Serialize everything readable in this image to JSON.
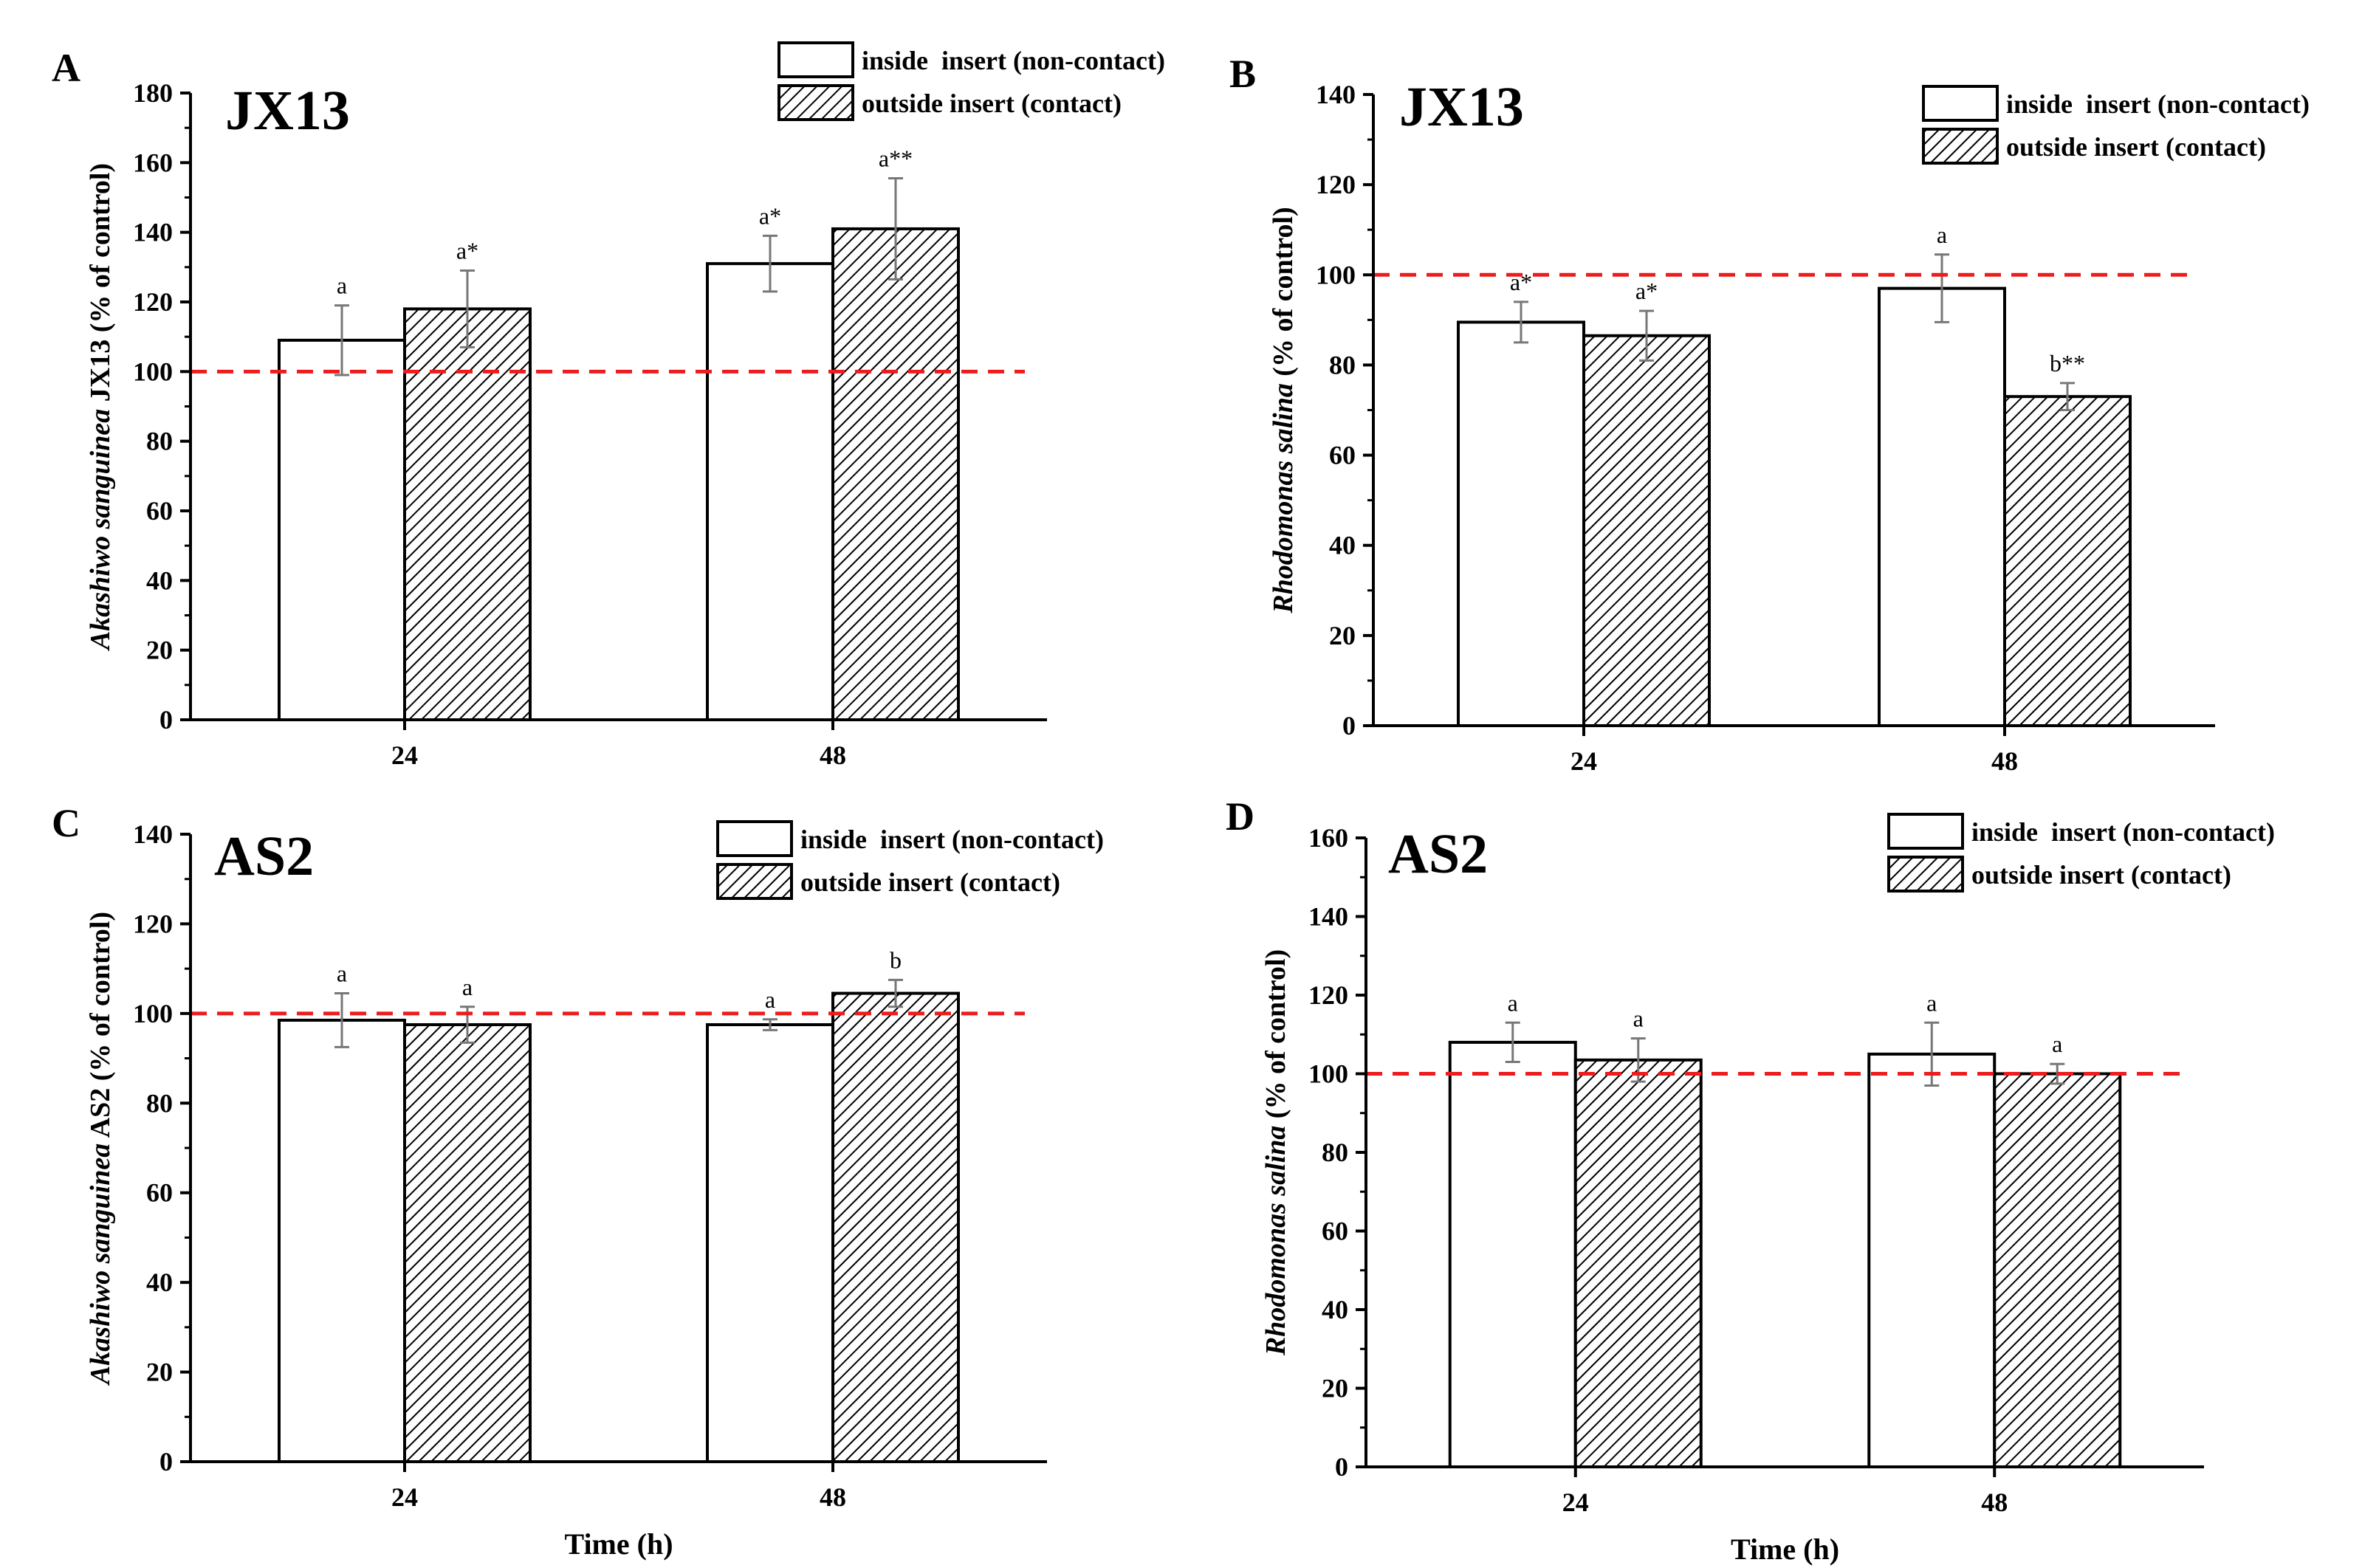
{
  "figure": {
    "hatch_color": "#000000",
    "reference_line_color": "#ee1c1c",
    "errorbar_color": "#777777"
  },
  "chart_data": [
    {
      "panel": "A",
      "type": "bar",
      "title": "JX13",
      "ylabel_italic": "Akashiwo sanguinea",
      "ylabel_rest": " JX13 (% of control)",
      "xlabel": "",
      "categories": [
        "24",
        "48"
      ],
      "ylim": [
        0,
        180
      ],
      "yticks": [
        0,
        20,
        40,
        60,
        80,
        100,
        120,
        140,
        160,
        180
      ],
      "reference_line": 100,
      "legend_position": "top-right",
      "series": [
        {
          "name": "inside  insert (non-contact)",
          "pattern": "none",
          "values": [
            109,
            131
          ],
          "errors": [
            10,
            8
          ],
          "labels": [
            "a",
            "a*"
          ]
        },
        {
          "name": "outside insert (contact)",
          "pattern": "hatch",
          "values": [
            118,
            141
          ],
          "errors": [
            11,
            14.5
          ],
          "labels": [
            "a*",
            "a**"
          ]
        }
      ]
    },
    {
      "panel": "B",
      "type": "bar",
      "title": "JX13",
      "ylabel_italic": "Rhodomonas salina",
      "ylabel_rest": " (% of control)",
      "xlabel": "",
      "categories": [
        "24",
        "48"
      ],
      "ylim": [
        0,
        140
      ],
      "yticks": [
        0,
        20,
        40,
        60,
        80,
        100,
        120,
        140
      ],
      "reference_line": 100,
      "legend_position": "top-right",
      "series": [
        {
          "name": "inside  insert (non-contact)",
          "pattern": "none",
          "values": [
            89.5,
            97
          ],
          "errors": [
            4.5,
            7.5
          ],
          "labels": [
            "a*",
            "a"
          ]
        },
        {
          "name": "outside insert (contact)",
          "pattern": "hatch",
          "values": [
            86.5,
            73
          ],
          "errors": [
            5.5,
            3
          ],
          "labels": [
            "a*",
            "b**"
          ]
        }
      ]
    },
    {
      "panel": "C",
      "type": "bar",
      "title": "AS2",
      "ylabel_italic": "Akashiwo sanguinea",
      "ylabel_rest": " AS2 (% of control)",
      "xlabel": "Time (h)",
      "categories": [
        "24",
        "48"
      ],
      "ylim": [
        0,
        140
      ],
      "yticks": [
        0,
        20,
        40,
        60,
        80,
        100,
        120,
        140
      ],
      "reference_line": 100,
      "legend_position": "top-right",
      "series": [
        {
          "name": "inside  insert (non-contact)",
          "pattern": "none",
          "values": [
            98.5,
            97.5
          ],
          "errors": [
            6,
            1.2
          ],
          "labels": [
            "a",
            "a"
          ]
        },
        {
          "name": "outside insert (contact)",
          "pattern": "hatch",
          "values": [
            97.5,
            104.5
          ],
          "errors": [
            4,
            3
          ],
          "labels": [
            "a",
            "b"
          ]
        }
      ]
    },
    {
      "panel": "D",
      "type": "bar",
      "title": "AS2",
      "ylabel_italic": "Rhodomonas salina",
      "ylabel_rest": " (% of control)",
      "xlabel": "Time (h)",
      "categories": [
        "24",
        "48"
      ],
      "ylim": [
        0,
        160
      ],
      "yticks": [
        0,
        20,
        40,
        60,
        80,
        100,
        120,
        140,
        160
      ],
      "reference_line": 100,
      "legend_position": "top-right",
      "series": [
        {
          "name": "inside  insert (non-contact)",
          "pattern": "none",
          "values": [
            108,
            105
          ],
          "errors": [
            5,
            8
          ],
          "labels": [
            "a",
            "a"
          ]
        },
        {
          "name": "outside insert (contact)",
          "pattern": "hatch",
          "values": [
            103.5,
            100
          ],
          "errors": [
            5.5,
            2.5
          ],
          "labels": [
            "a",
            "a"
          ]
        }
      ]
    }
  ]
}
